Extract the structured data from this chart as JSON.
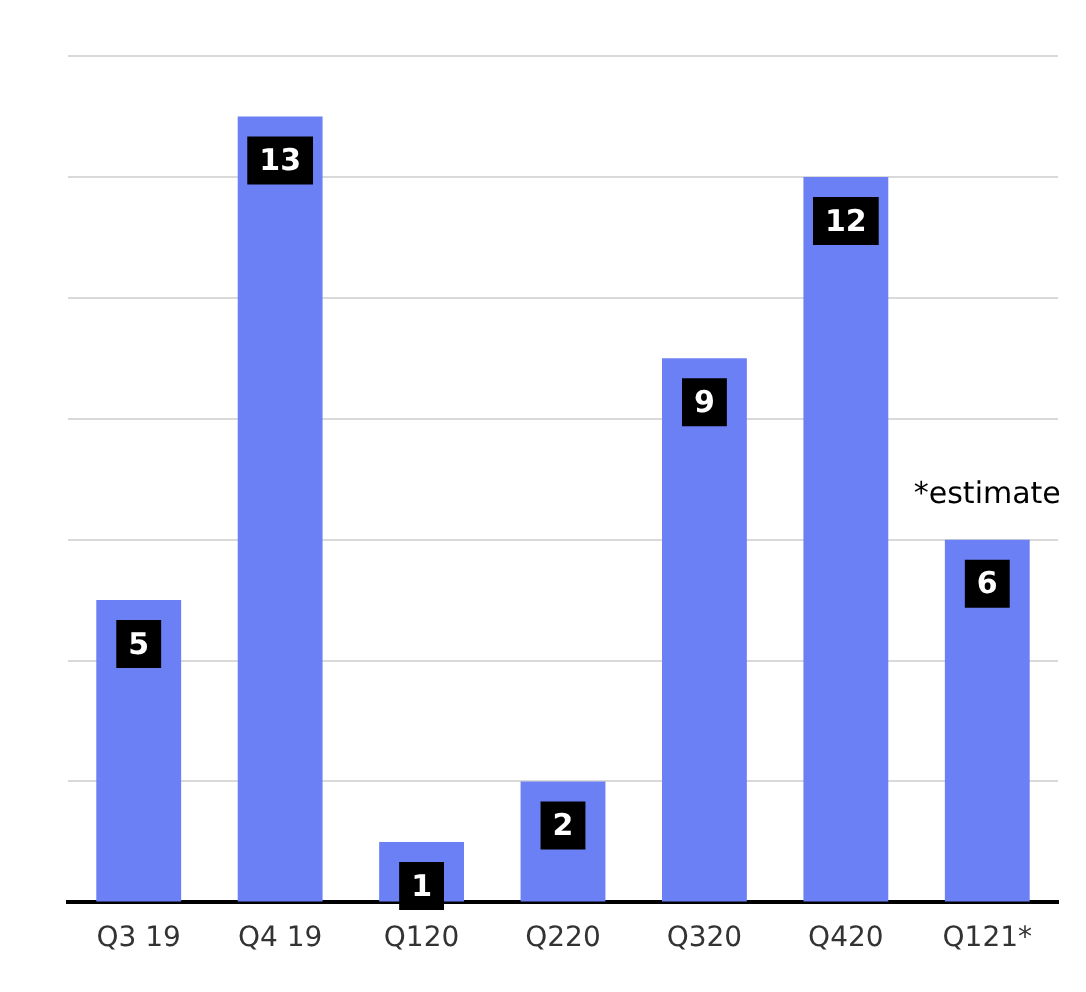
{
  "chart_data": {
    "type": "bar",
    "categories": [
      "Q3 19",
      "Q4 19",
      "Q120",
      "Q220",
      "Q320",
      "Q420",
      "Q121*"
    ],
    "values": [
      5,
      13,
      1,
      2,
      9,
      12,
      6
    ],
    "color": "#6b80f5",
    "ylim": [
      0,
      14
    ],
    "yticks": [
      {
        "value": 0,
        "label": null
      },
      {
        "value": 2,
        "label": null
      },
      {
        "value": 4,
        "label": null
      },
      {
        "value": 6,
        "label": null
      },
      {
        "value": 8,
        "label": null
      },
      {
        "value": 10,
        "label": null
      },
      {
        "value": 12,
        "label": null
      },
      {
        "value": 14,
        "label": null
      }
    ],
    "grid": "y",
    "data_labels": true,
    "annotations": [
      {
        "text": "*estimate",
        "x": "Q121*",
        "y": 6
      }
    ]
  }
}
